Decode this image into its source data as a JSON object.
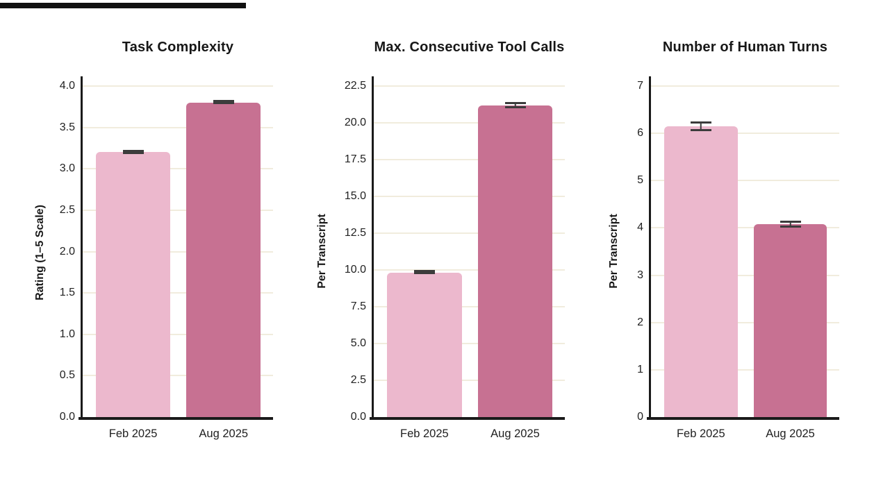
{
  "top_edge_bar": {
    "color": "#111111"
  },
  "colors": {
    "background": "#ffffff",
    "bar_feb": "#ecb8cd",
    "bar_aug": "#c77192",
    "gridline": "#f1ecdd",
    "axis": "#1a1a1a",
    "error_bar": "#3c3c3c",
    "text": "#1b1b1b"
  },
  "chart_data": [
    {
      "type": "bar",
      "title": "Task Complexity",
      "ylabel": "Rating (1–5 Scale)",
      "xlabel": "",
      "categories": [
        "Feb 2025",
        "Aug 2025"
      ],
      "values": [
        3.2,
        3.8
      ],
      "errors": [
        0.02,
        0.02
      ],
      "bar_colors": [
        "#ecb8cd",
        "#c77192"
      ],
      "ylim": [
        0,
        4.0
      ],
      "yticks": [
        "0.0",
        "0.5",
        "1.0",
        "1.5",
        "2.0",
        "2.5",
        "3.0",
        "3.5",
        "4.0"
      ],
      "grid": true,
      "legend": "none"
    },
    {
      "type": "bar",
      "title": "Max. Consecutive Tool Calls",
      "ylabel": "Per Transcript",
      "xlabel": "",
      "categories": [
        "Feb 2025",
        "Aug 2025"
      ],
      "values": [
        9.8,
        21.2
      ],
      "errors": [
        0.1,
        0.2
      ],
      "bar_colors": [
        "#ecb8cd",
        "#c77192"
      ],
      "ylim": [
        0,
        22.5
      ],
      "yticks": [
        "0.0",
        "2.5",
        "5.0",
        "7.5",
        "10.0",
        "12.5",
        "15.0",
        "17.5",
        "20.0",
        "22.5"
      ],
      "grid": true,
      "legend": "none"
    },
    {
      "type": "bar",
      "title": "Number of Human Turns",
      "ylabel": "Per Transcript",
      "xlabel": "",
      "categories": [
        "Feb 2025",
        "Aug 2025"
      ],
      "values": [
        6.15,
        4.08
      ],
      "errors": [
        0.1,
        0.07
      ],
      "bar_colors": [
        "#ecb8cd",
        "#c77192"
      ],
      "ylim": [
        0,
        7
      ],
      "yticks": [
        "0",
        "1",
        "2",
        "3",
        "4",
        "5",
        "6",
        "7"
      ],
      "grid": true,
      "legend": "none"
    }
  ]
}
